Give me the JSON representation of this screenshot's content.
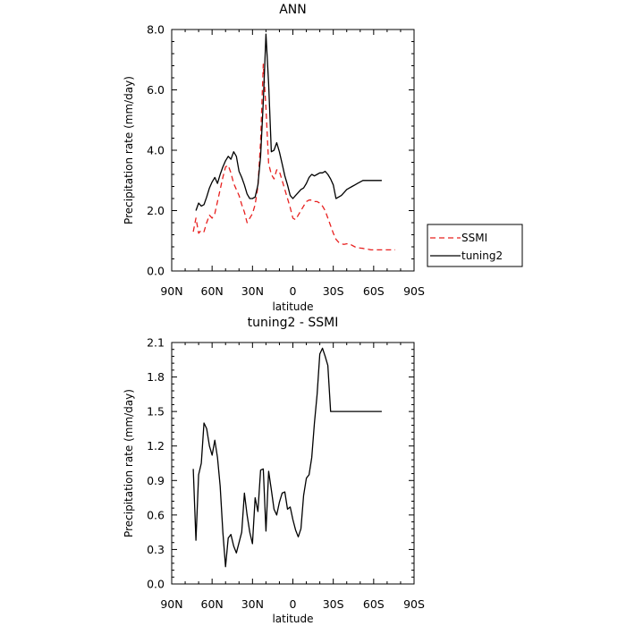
{
  "chart_data": [
    {
      "type": "line",
      "title": "ANN",
      "xlabel": "latitude",
      "ylabel": "Precipitation rate (mm/day)",
      "xlim": [
        90,
        -90
      ],
      "ylim": [
        0,
        8
      ],
      "x_ticks": [
        90,
        60,
        30,
        0,
        -30,
        -60,
        -90
      ],
      "x_tick_labels": [
        "90N",
        "60N",
        "30N",
        "0",
        "30S",
        "60S",
        "90S"
      ],
      "y_ticks": [
        0,
        2,
        4,
        6,
        8
      ],
      "y_tick_labels": [
        "0.0",
        "2.0",
        "4.0",
        "6.0",
        "8.0"
      ],
      "grid": false,
      "legend_position": "right",
      "series": [
        {
          "name": "SSMI",
          "color": "#e8201f",
          "dash": "dashed",
          "x": [
            74,
            72,
            70,
            68,
            66,
            64,
            62,
            60,
            58,
            56,
            54,
            52,
            50,
            48,
            46,
            44,
            42,
            40,
            38,
            36,
            34,
            32,
            30,
            28,
            26,
            24,
            22,
            20,
            18,
            16,
            14,
            12,
            10,
            8,
            6,
            4,
            2,
            0,
            -2,
            -4,
            -6,
            -8,
            -10,
            -12,
            -14,
            -16,
            -18,
            -20,
            -22,
            -24,
            -26,
            -28,
            -30,
            -32,
            -34,
            -36,
            -38,
            -40,
            -42,
            -44,
            -46,
            -48,
            -50,
            -52,
            -54,
            -56,
            -58,
            -60,
            -62,
            -64,
            -66,
            -68,
            -70,
            -72,
            -74,
            -76
          ],
          "values": [
            1.3,
            1.75,
            1.25,
            1.35,
            1.3,
            1.6,
            1.85,
            1.75,
            1.9,
            2.3,
            2.7,
            3.1,
            3.45,
            3.5,
            3.25,
            2.9,
            2.7,
            2.5,
            2.2,
            1.95,
            1.6,
            1.75,
            1.9,
            2.2,
            2.8,
            4.3,
            6.85,
            5.4,
            3.55,
            3.2,
            3.05,
            3.35,
            3.3,
            3.0,
            2.7,
            2.4,
            2.1,
            1.75,
            1.7,
            1.85,
            2.0,
            2.15,
            2.3,
            2.35,
            2.35,
            2.3,
            2.3,
            2.25,
            2.15,
            2.0,
            1.75,
            1.5,
            1.25,
            1.05,
            0.95,
            0.9,
            0.88,
            0.9,
            0.9,
            0.85,
            0.8,
            0.78,
            0.76,
            0.75,
            0.73,
            0.72,
            0.7,
            0.7,
            0.7,
            0.7,
            0.7,
            0.7,
            0.7,
            0.7,
            0.7,
            0.7
          ]
        },
        {
          "name": "tuning2",
          "color": "#000000",
          "dash": "solid",
          "x": [
            72,
            70,
            68,
            66,
            64,
            62,
            60,
            58,
            56,
            54,
            52,
            50,
            48,
            46,
            44,
            42,
            40,
            38,
            36,
            34,
            32,
            30,
            28,
            26,
            24,
            22,
            20,
            18,
            16,
            14,
            12,
            10,
            8,
            6,
            4,
            2,
            0,
            -2,
            -4,
            -6,
            -8,
            -10,
            -12,
            -14,
            -16,
            -18,
            -20,
            -22,
            -24,
            -26,
            -28,
            -30,
            -32,
            -34,
            -36,
            -38,
            -40,
            -42,
            -44,
            -46,
            -48,
            -50,
            -52,
            -54,
            -56,
            -58,
            -60,
            -62,
            -64,
            -66,
            -68
          ],
          "values": [
            2.0,
            2.25,
            2.15,
            2.2,
            2.45,
            2.75,
            2.95,
            3.1,
            2.9,
            3.2,
            3.45,
            3.65,
            3.8,
            3.7,
            3.95,
            3.8,
            3.3,
            3.1,
            2.85,
            2.55,
            2.4,
            2.4,
            2.45,
            2.85,
            3.8,
            5.6,
            7.85,
            6.2,
            3.95,
            4.0,
            4.25,
            3.95,
            3.55,
            3.15,
            2.85,
            2.5,
            2.4,
            2.5,
            2.6,
            2.7,
            2.75,
            2.9,
            3.1,
            3.2,
            3.15,
            3.2,
            3.25,
            3.25,
            3.3,
            3.2,
            3.05,
            2.85,
            2.4,
            2.45,
            2.5,
            2.6,
            2.7,
            2.75,
            2.8,
            2.85,
            2.9,
            2.95,
            3.0,
            3.0,
            3.0,
            3.0,
            3.0,
            3.0,
            3.0,
            3.0,
            3.0
          ]
        }
      ]
    },
    {
      "type": "line",
      "title": "tuning2 - SSMI",
      "xlabel": "latitude",
      "ylabel": "Precipitation rate (mm/day)",
      "xlim": [
        90,
        -90
      ],
      "ylim": [
        0,
        2.1
      ],
      "x_ticks": [
        90,
        60,
        30,
        0,
        -30,
        -60,
        -90
      ],
      "x_tick_labels": [
        "90N",
        "60N",
        "30N",
        "0",
        "30S",
        "60S",
        "90S"
      ],
      "y_ticks": [
        0,
        0.3,
        0.6,
        0.9,
        1.2,
        1.5,
        1.8,
        2.1
      ],
      "y_tick_labels": [
        "0.0",
        "0.3",
        "0.6",
        "0.9",
        "1.2",
        "1.5",
        "1.8",
        "2.1"
      ],
      "grid": false,
      "series": [
        {
          "name": "",
          "color": "#000000",
          "dash": "solid",
          "x": [
            74,
            72,
            70,
            68,
            66,
            64,
            62,
            60,
            58,
            56,
            54,
            52,
            50,
            48,
            46,
            44,
            42,
            40,
            38,
            36,
            34,
            32,
            30,
            28,
            26,
            24,
            22,
            20,
            18,
            16,
            14,
            12,
            10,
            8,
            6,
            4,
            2,
            0,
            -2,
            -4,
            -6,
            -8,
            -10,
            -12,
            -14,
            -16,
            -18,
            -20,
            -22,
            -24,
            -26,
            -28,
            -30,
            -32,
            -34,
            -36,
            -38,
            -40,
            -42,
            -44,
            -46,
            -48,
            -50,
            -52,
            -54,
            -56,
            -58,
            -60,
            -62,
            -64,
            -66
          ],
          "values": [
            1.0,
            0.38,
            0.95,
            1.05,
            1.4,
            1.35,
            1.2,
            1.12,
            1.25,
            1.1,
            0.85,
            0.45,
            0.15,
            0.4,
            0.43,
            0.33,
            0.27,
            0.36,
            0.45,
            0.79,
            0.6,
            0.45,
            0.35,
            0.75,
            0.63,
            0.99,
            1.0,
            0.46,
            0.98,
            0.82,
            0.65,
            0.6,
            0.71,
            0.79,
            0.8,
            0.65,
            0.67,
            0.56,
            0.47,
            0.41,
            0.48,
            0.77,
            0.92,
            0.95,
            1.1,
            1.4,
            1.65,
            2.0,
            2.05,
            1.98,
            1.9,
            1.5,
            1.5,
            1.5,
            1.5,
            1.5,
            1.5,
            1.5,
            1.5,
            1.5,
            1.5,
            1.5,
            1.5,
            1.5,
            1.5,
            1.5,
            1.5,
            1.5,
            1.5,
            1.5,
            1.5
          ]
        }
      ]
    }
  ]
}
